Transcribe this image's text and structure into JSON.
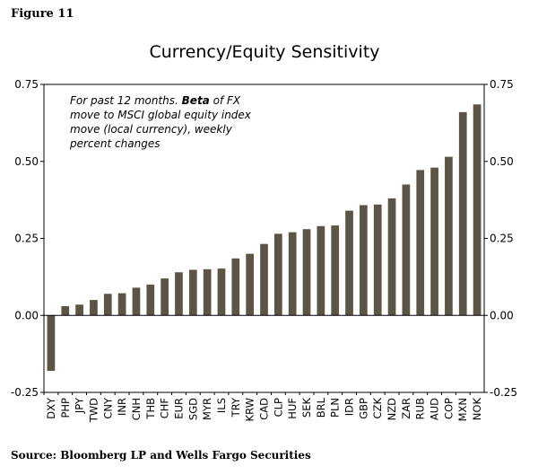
{
  "figure_label": "Figure 11",
  "source": "Source: Bloomberg LP and Wells Fargo Securities",
  "chart_data": {
    "type": "bar",
    "title": "Currency/Equity Sensitivity",
    "annotation": {
      "line1_prefix": "For past 12 months. ",
      "line1_bold": "Beta",
      "line1_suffix": " of FX",
      "line2": "move to MSCI global equity index",
      "line3": "move (local currency), weekly",
      "line4": "percent changes"
    },
    "categories": [
      "DXY",
      "PHP",
      "JPY",
      "TWD",
      "CNY",
      "INR",
      "CNH",
      "THB",
      "CHF",
      "EUR",
      "SGD",
      "MYR",
      "ILS",
      "TRY",
      "KRW",
      "CAD",
      "CLP",
      "HUF",
      "SEK",
      "BRL",
      "PLN",
      "IDR",
      "GBP",
      "CZK",
      "NZD",
      "ZAR",
      "RUB",
      "AUD",
      "COP",
      "MXN",
      "NOK"
    ],
    "values": [
      -0.18,
      0.03,
      0.035,
      0.05,
      0.07,
      0.072,
      0.09,
      0.1,
      0.12,
      0.14,
      0.148,
      0.15,
      0.152,
      0.185,
      0.2,
      0.232,
      0.265,
      0.27,
      0.28,
      0.29,
      0.292,
      0.34,
      0.358,
      0.36,
      0.38,
      0.425,
      0.472,
      0.48,
      0.515,
      0.66,
      0.685
    ],
    "ylim": [
      -0.25,
      0.75
    ],
    "yticks": [
      "0.75",
      "0.50",
      "0.25",
      "0.00",
      "-0.25"
    ],
    "yticks_right": [
      "0.75",
      "0.50",
      "0.25",
      "0.00",
      "-0.25"
    ],
    "bar_color": "#5c5444",
    "grid": false
  }
}
